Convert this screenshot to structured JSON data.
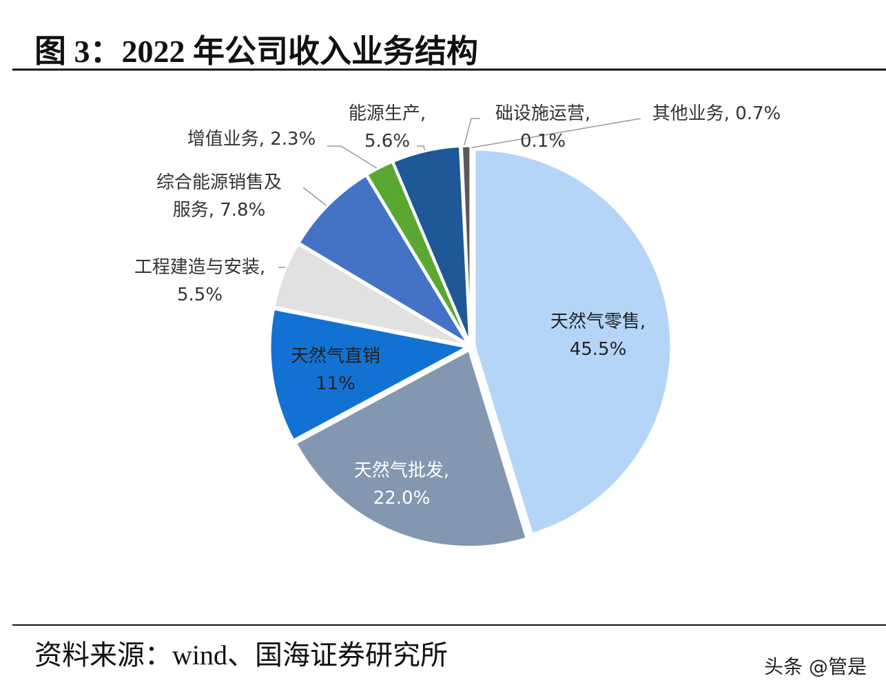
{
  "chart_data": {
    "type": "pie",
    "title": "图 3：2022 年公司收入业务结构",
    "categories": [
      "天然气零售,",
      "天然气批发,",
      "天然气直销",
      "工程建造与安装,",
      "综合能源销售及服务,",
      "增值业务,",
      "能源生产,",
      "础设施运营,",
      "其他业务,"
    ],
    "values": [
      45.5,
      22.0,
      11,
      5.5,
      7.8,
      2.3,
      5.6,
      0.1,
      0.7
    ],
    "value_labels": [
      "45.5%",
      "22.0%",
      "11%",
      "5.5%",
      "7.8%",
      "2.3%",
      "5.6%",
      "0.1%",
      "0.7%"
    ],
    "colors": [
      "#b5d5f8",
      "#8497b0",
      "#1272d3",
      "#e1e1e1",
      "#4472c4",
      "#5aa832",
      "#1f5896",
      "#203864",
      "#595959"
    ],
    "source": "资料来源：wind、国海证券研究所",
    "watermark": "头条 @管是"
  }
}
